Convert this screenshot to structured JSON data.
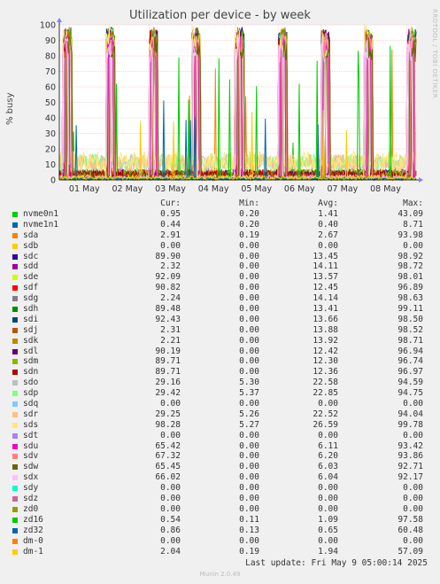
{
  "chart_data": {
    "type": "line",
    "title": "Utilization per device - by week",
    "ylabel": "% busy",
    "side_label": "RRDTOOL / TOBI OETIKER",
    "ylim": [
      0,
      100
    ],
    "yticks": [
      0,
      10,
      20,
      30,
      40,
      50,
      60,
      70,
      80,
      90,
      100
    ],
    "xticks": [
      "01 May",
      "02 May",
      "03 May",
      "04 May",
      "05 May",
      "06 May",
      "07 May",
      "08 May"
    ],
    "grid": true,
    "legend_header": {
      "cur": "Cur:",
      "min": "Min:",
      "avg": "Avg:",
      "max": "Max:"
    },
    "series": [
      {
        "name": "nvme0n1",
        "color": "#00cc00",
        "cur": "0.95",
        "min": "0.20",
        "avg": "1.41",
        "max": "43.09"
      },
      {
        "name": "nvme1n1",
        "color": "#0066b3",
        "cur": "0.44",
        "min": "0.20",
        "avg": "0.40",
        "max": "8.71"
      },
      {
        "name": "sda",
        "color": "#ff8000",
        "cur": "2.91",
        "min": "0.19",
        "avg": "2.67",
        "max": "93.98"
      },
      {
        "name": "sdb",
        "color": "#ffcc00",
        "cur": "0.00",
        "min": "0.00",
        "avg": "0.00",
        "max": "0.00"
      },
      {
        "name": "sdc",
        "color": "#330099",
        "cur": "89.90",
        "min": "0.00",
        "avg": "13.45",
        "max": "98.92"
      },
      {
        "name": "sdd",
        "color": "#990099",
        "cur": "2.32",
        "min": "0.00",
        "avg": "14.11",
        "max": "98.72"
      },
      {
        "name": "sde",
        "color": "#ccff00",
        "cur": "92.09",
        "min": "0.00",
        "avg": "13.57",
        "max": "98.01"
      },
      {
        "name": "sdf",
        "color": "#ff0000",
        "cur": "90.82",
        "min": "0.00",
        "avg": "12.45",
        "max": "96.89"
      },
      {
        "name": "sdg",
        "color": "#808080",
        "cur": "2.24",
        "min": "0.00",
        "avg": "14.14",
        "max": "98.63"
      },
      {
        "name": "sdh",
        "color": "#008f00",
        "cur": "89.48",
        "min": "0.00",
        "avg": "13.41",
        "max": "99.11"
      },
      {
        "name": "sdi",
        "color": "#00487d",
        "cur": "92.43",
        "min": "0.00",
        "avg": "13.66",
        "max": "98.50"
      },
      {
        "name": "sdj",
        "color": "#b35a00",
        "cur": "2.31",
        "min": "0.00",
        "avg": "13.88",
        "max": "98.52"
      },
      {
        "name": "sdk",
        "color": "#b38f00",
        "cur": "2.21",
        "min": "0.00",
        "avg": "13.92",
        "max": "98.71"
      },
      {
        "name": "sdl",
        "color": "#6b006b",
        "cur": "90.19",
        "min": "0.00",
        "avg": "12.42",
        "max": "96.94"
      },
      {
        "name": "sdm",
        "color": "#8fb300",
        "cur": "89.71",
        "min": "0.00",
        "avg": "12.30",
        "max": "96.74"
      },
      {
        "name": "sdn",
        "color": "#b30000",
        "cur": "89.71",
        "min": "0.00",
        "avg": "12.36",
        "max": "96.97"
      },
      {
        "name": "sdo",
        "color": "#bebebe",
        "cur": "29.16",
        "min": "5.30",
        "avg": "22.58",
        "max": "94.59"
      },
      {
        "name": "sdp",
        "color": "#80ff80",
        "cur": "29.42",
        "min": "5.37",
        "avg": "22.85",
        "max": "94.75"
      },
      {
        "name": "sdq",
        "color": "#80c9ff",
        "cur": "0.00",
        "min": "0.00",
        "avg": "0.00",
        "max": "0.00"
      },
      {
        "name": "sdr",
        "color": "#ffc080",
        "cur": "29.25",
        "min": "5.26",
        "avg": "22.52",
        "max": "94.04"
      },
      {
        "name": "sds",
        "color": "#ffe680",
        "cur": "98.28",
        "min": "5.27",
        "avg": "26.59",
        "max": "99.78"
      },
      {
        "name": "sdt",
        "color": "#aa80ff",
        "cur": "0.00",
        "min": "0.00",
        "avg": "0.00",
        "max": "0.00"
      },
      {
        "name": "sdu",
        "color": "#ee00cc",
        "cur": "65.42",
        "min": "0.00",
        "avg": "6.11",
        "max": "93.42"
      },
      {
        "name": "sdv",
        "color": "#ff8080",
        "cur": "67.32",
        "min": "0.00",
        "avg": "6.20",
        "max": "93.86"
      },
      {
        "name": "sdw",
        "color": "#666600",
        "cur": "65.45",
        "min": "0.00",
        "avg": "6.03",
        "max": "92.71"
      },
      {
        "name": "sdx",
        "color": "#ffbfff",
        "cur": "66.02",
        "min": "0.00",
        "avg": "6.04",
        "max": "92.17"
      },
      {
        "name": "sdy",
        "color": "#00ffcc",
        "cur": "0.00",
        "min": "0.00",
        "avg": "0.00",
        "max": "0.00"
      },
      {
        "name": "sdz",
        "color": "#cc6699",
        "cur": "0.00",
        "min": "0.00",
        "avg": "0.00",
        "max": "0.00"
      },
      {
        "name": "zd0",
        "color": "#999900",
        "cur": "0.00",
        "min": "0.00",
        "avg": "0.00",
        "max": "0.00"
      },
      {
        "name": "zd16",
        "color": "#00cc00",
        "cur": "0.54",
        "min": "0.11",
        "avg": "1.09",
        "max": "97.58"
      },
      {
        "name": "zd32",
        "color": "#0066b3",
        "cur": "0.86",
        "min": "0.13",
        "avg": "0.65",
        "max": "60.48"
      },
      {
        "name": "dm-0",
        "color": "#ff8000",
        "cur": "0.00",
        "min": "0.00",
        "avg": "0.00",
        "max": "0.00"
      },
      {
        "name": "dm-1",
        "color": "#ffcc00",
        "cur": "2.04",
        "min": "0.19",
        "avg": "1.94",
        "max": "57.09"
      }
    ]
  },
  "footer": {
    "last_update": "Last update: Fri May  9 05:00:14 2025",
    "generator": "Munin 2.0.49"
  }
}
